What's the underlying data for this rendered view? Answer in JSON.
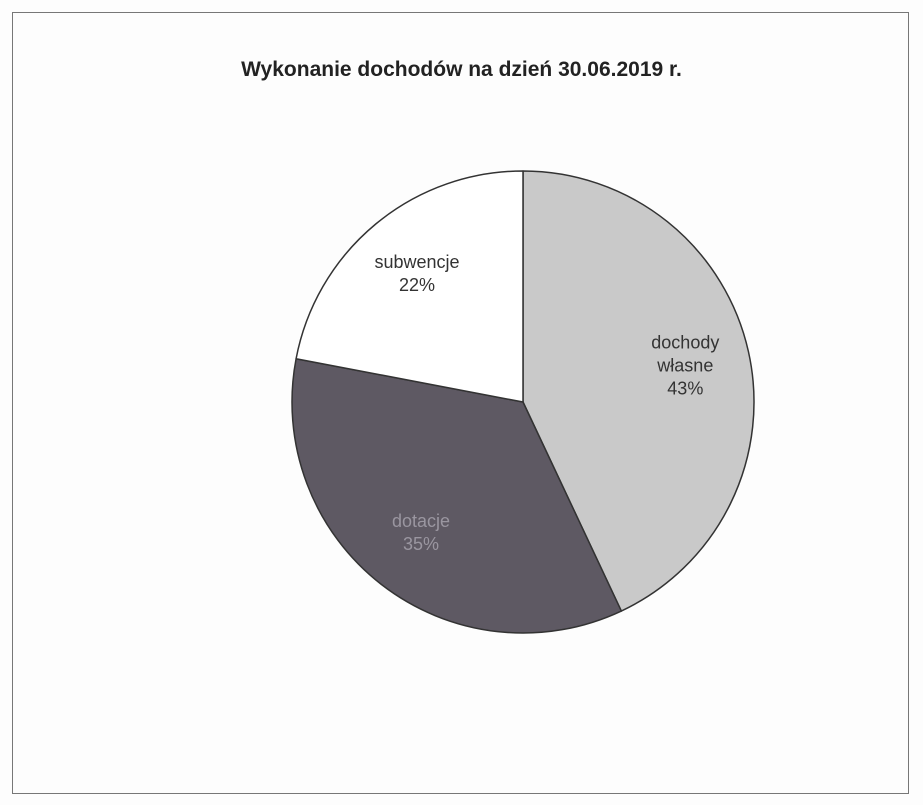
{
  "chart_data": {
    "type": "pie",
    "title": "Wykonanie dochodów na dzień 30.06.2019 r.",
    "categories": [
      "dochody własne",
      "dotacje",
      "subwencje"
    ],
    "values": [
      43,
      35,
      22
    ],
    "value_labels": [
      "43%",
      "35%",
      "22%"
    ],
    "colors": [
      "#c9c9c9",
      "#5e5963",
      "#ffffff"
    ]
  }
}
